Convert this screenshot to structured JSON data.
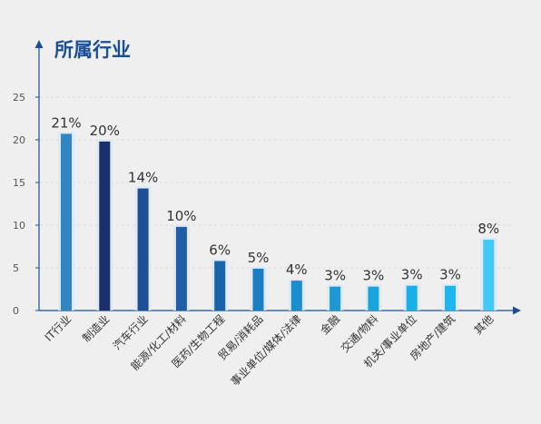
{
  "chart_data": {
    "type": "bar",
    "ylabel": "所属行业",
    "xlabel": "",
    "categories": [
      "IT行业",
      "制造业",
      "汽车行业",
      "能源/化工/材料",
      "医药/生物工程",
      "贸易/消耗品",
      "事业单位/媒体/法律",
      "金融",
      "交通/物料",
      "机关/事业单位",
      "房地产/建筑",
      "其他"
    ],
    "values": [
      20.7,
      19.8,
      14.3,
      9.8,
      5.8,
      4.9,
      3.5,
      2.8,
      2.8,
      2.9,
      2.9,
      8.3
    ],
    "data_labels": [
      "21%",
      "20%",
      "14%",
      "10%",
      "6%",
      "5%",
      "4%",
      "3%",
      "3%",
      "3%",
      "3%",
      "8%"
    ],
    "bar_colors": [
      "#2f86c2",
      "#1b2f6e",
      "#1d4f94",
      "#205ea8",
      "#1765a8",
      "#1a7fc0",
      "#1a8fd0",
      "#1c98d5",
      "#19a3df",
      "#19b0ea",
      "#1fb6ee",
      "#45c8f5"
    ],
    "y_ticks": [
      "0",
      "5",
      "10",
      "15",
      "20",
      "25"
    ],
    "ylim": [
      0,
      25
    ],
    "grid": true,
    "legend": "none"
  }
}
